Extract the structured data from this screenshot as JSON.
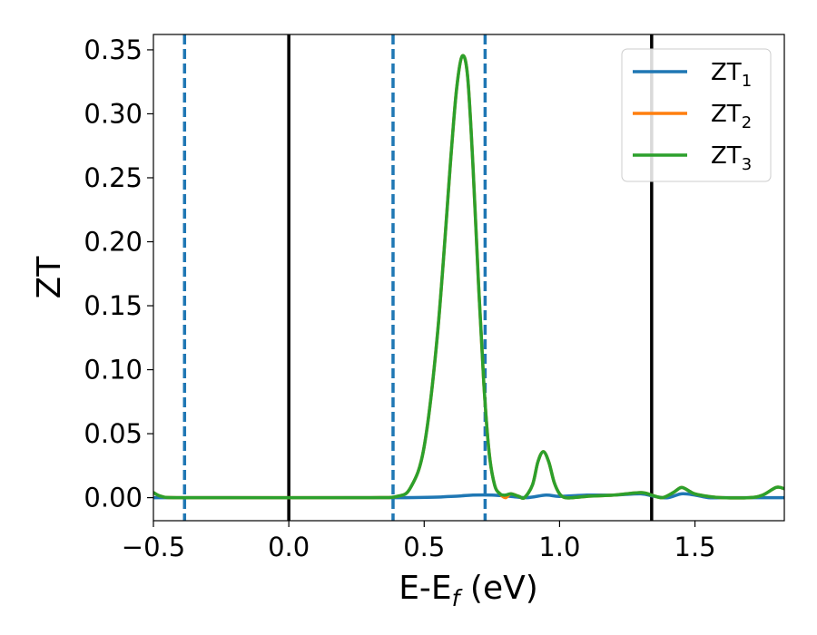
{
  "chart_data": {
    "type": "line",
    "xlabel": "E-E",
    "xlabel_sub": "f",
    "xlabel_unit": " (eV)",
    "ylabel": "ZT",
    "xlim": [
      -0.5,
      1.83
    ],
    "ylim": [
      -0.018,
      0.362
    ],
    "xticks": [
      -0.5,
      0.0,
      0.5,
      1.0,
      1.5
    ],
    "xtick_labels": [
      "−0.5",
      "0.0",
      "0.5",
      "1.0",
      "1.5"
    ],
    "yticks": [
      0.0,
      0.05,
      0.1,
      0.15,
      0.2,
      0.25,
      0.3,
      0.35
    ],
    "ytick_labels": [
      "0.00",
      "0.05",
      "0.10",
      "0.15",
      "0.20",
      "0.25",
      "0.30",
      "0.35"
    ],
    "grid": false,
    "legend_position": "top-right",
    "vlines": [
      {
        "x": -0.385,
        "style": "dashed",
        "color": "#1f77b4"
      },
      {
        "x": 0.0,
        "style": "solid",
        "color": "#000000"
      },
      {
        "x": 0.385,
        "style": "dashed",
        "color": "#1f77b4"
      },
      {
        "x": 0.725,
        "style": "dashed",
        "color": "#1f77b4"
      },
      {
        "x": 1.34,
        "style": "solid",
        "color": "#000000"
      }
    ],
    "series": [
      {
        "name": "ZT",
        "name_sub": "1",
        "color": "#1f77b4",
        "x": [
          -0.5,
          0.4,
          0.6,
          0.68,
          0.75,
          0.82,
          0.88,
          0.95,
          1.0,
          1.1,
          1.2,
          1.3,
          1.35,
          1.4,
          1.45,
          1.5,
          1.55,
          1.6,
          1.7,
          1.83
        ],
        "y": [
          0.0,
          0.0,
          0.001,
          0.002,
          0.002,
          0.001,
          0.0,
          0.002,
          0.001,
          0.002,
          0.002,
          0.003,
          0.001,
          0.0,
          0.003,
          0.002,
          0.0,
          0.0,
          0.0,
          0.0
        ]
      },
      {
        "name": "ZT",
        "name_sub": "2",
        "color": "#ff7f0e",
        "x": [
          -0.5,
          -0.47,
          -0.4,
          0.0,
          0.3,
          0.4,
          0.45,
          0.5,
          0.55,
          0.6,
          0.62,
          0.64,
          0.66,
          0.68,
          0.7,
          0.72,
          0.74,
          0.76,
          0.78,
          0.8,
          0.82,
          0.85,
          0.87,
          0.9,
          0.92,
          0.94,
          0.96,
          0.98,
          1.0,
          1.02,
          1.05,
          1.1,
          1.2,
          1.3,
          1.34,
          1.38,
          1.42,
          1.45,
          1.48,
          1.5,
          1.55,
          1.6,
          1.7,
          1.75,
          1.8,
          1.83
        ],
        "y": [
          0.004,
          0.001,
          0.0,
          0.0,
          0.0,
          0.001,
          0.008,
          0.04,
          0.13,
          0.27,
          0.32,
          0.345,
          0.33,
          0.26,
          0.17,
          0.09,
          0.035,
          0.01,
          0.003,
          0.0,
          0.003,
          0.001,
          0.0,
          0.01,
          0.028,
          0.036,
          0.028,
          0.012,
          0.003,
          0.0,
          0.0,
          0.001,
          0.002,
          0.004,
          0.002,
          0.0,
          0.004,
          0.008,
          0.005,
          0.003,
          0.001,
          0.0,
          0.0,
          0.002,
          0.008,
          0.007
        ]
      },
      {
        "name": "ZT",
        "name_sub": "3",
        "color": "#2ca02c",
        "x": [
          -0.5,
          -0.47,
          -0.4,
          0.0,
          0.3,
          0.4,
          0.45,
          0.5,
          0.55,
          0.6,
          0.62,
          0.64,
          0.66,
          0.68,
          0.7,
          0.72,
          0.74,
          0.76,
          0.78,
          0.8,
          0.82,
          0.85,
          0.87,
          0.9,
          0.92,
          0.94,
          0.96,
          0.98,
          1.0,
          1.02,
          1.05,
          1.1,
          1.2,
          1.3,
          1.34,
          1.38,
          1.42,
          1.45,
          1.48,
          1.5,
          1.55,
          1.6,
          1.7,
          1.75,
          1.8,
          1.83
        ],
        "y": [
          0.004,
          0.001,
          0.0,
          0.0,
          0.0,
          0.001,
          0.008,
          0.04,
          0.13,
          0.27,
          0.32,
          0.345,
          0.33,
          0.26,
          0.17,
          0.09,
          0.035,
          0.01,
          0.003,
          0.002,
          0.003,
          0.001,
          0.0,
          0.01,
          0.028,
          0.036,
          0.028,
          0.012,
          0.003,
          0.0,
          0.0,
          0.001,
          0.002,
          0.004,
          0.002,
          0.0,
          0.004,
          0.008,
          0.005,
          0.003,
          0.001,
          0.0,
          0.0,
          0.002,
          0.008,
          0.007
        ]
      }
    ]
  }
}
